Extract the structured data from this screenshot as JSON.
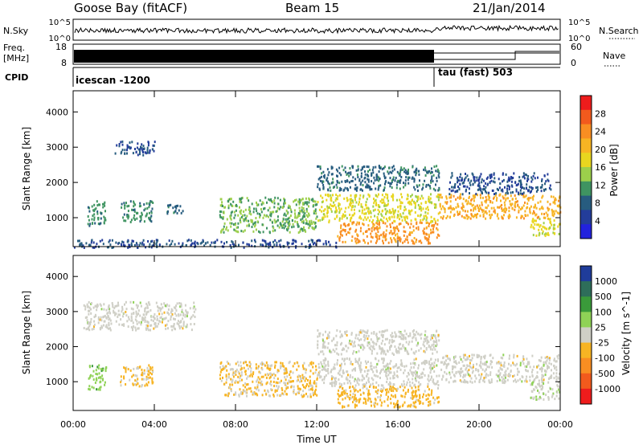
{
  "header": {
    "station": "Goose Bay (fitACF)",
    "beam": "Beam 15",
    "date": "21/Jan/2014"
  },
  "top_panels": {
    "nsky_label": "N.Sky",
    "nsky_ticks": [
      "10^5",
      "10^0"
    ],
    "nsearch_label": "N.Search",
    "nsearch_ticks": [
      "10^5",
      "10^0"
    ],
    "freq_label": "Freq.",
    "freq_unit": "[MHz]",
    "freq_ticks": [
      "18",
      "8"
    ],
    "nave_label": "Nave",
    "nave_ticks": [
      "60",
      "0"
    ],
    "cpid_label": "CPID",
    "cpid_segments": [
      {
        "label": "icescan -1200",
        "start_hour": 0
      },
      {
        "label": "tau (fast) 503",
        "start_hour": 18
      }
    ]
  },
  "colorbars": {
    "power": {
      "label": "Power [dB]",
      "ticks": [
        "28",
        "24",
        "20",
        "16",
        "12",
        "8",
        "4"
      ],
      "colors": [
        "#ee1c1c",
        "#f25a1d",
        "#f98e22",
        "#f7b423",
        "#e8d61f",
        "#9ccf4b",
        "#3f9461",
        "#275c7f",
        "#233d9a",
        "#2222dd"
      ]
    },
    "velocity": {
      "label": "Velocity [m s^-1]",
      "ticks": [
        "1000",
        "500",
        "100",
        "25",
        "-25",
        "-100",
        "-500",
        "-1000"
      ],
      "colors": [
        "#1f3c9a",
        "#2e6e5a",
        "#3a9a3a",
        "#8fd256",
        "#cfcfc6",
        "#f7b423",
        "#f98e22",
        "#f25a1d",
        "#ee1c1c"
      ]
    }
  },
  "axes": {
    "ylabel": "Slant Range [km]",
    "yticks": [
      "4000",
      "3000",
      "2000",
      "1000"
    ],
    "xticks": [
      "00:00",
      "04:00",
      "08:00",
      "12:00",
      "16:00",
      "20:00",
      "00:00"
    ],
    "xlabel": "Time UT"
  },
  "chart_data": [
    {
      "type": "heatmap",
      "title": "",
      "xlabel": "Time UT",
      "ylabel": "Slant Range [km]",
      "colorbar_label": "Power [dB]",
      "xlim_hours": [
        0,
        24
      ],
      "ylim_km": [
        180,
        4600
      ],
      "color_range": [
        0,
        30
      ],
      "patches": [
        {
          "t0": 0.7,
          "t1": 1.6,
          "r0": 800,
          "r1": 1500,
          "value": 10
        },
        {
          "t0": 2.3,
          "t1": 3.9,
          "r0": 900,
          "r1": 1500,
          "value": 10
        },
        {
          "t0": 4.6,
          "t1": 5.4,
          "r0": 1150,
          "r1": 1400,
          "value": 8
        },
        {
          "t0": 2.0,
          "t1": 4.0,
          "r0": 2800,
          "r1": 3200,
          "value": 6
        },
        {
          "t0": 7.2,
          "t1": 12.0,
          "r0": 600,
          "r1": 1600,
          "value": 12
        },
        {
          "t0": 12.0,
          "t1": 18.0,
          "r0": 900,
          "r1": 1700,
          "value": 16
        },
        {
          "t0": 13.0,
          "t1": 18.0,
          "r0": 300,
          "r1": 900,
          "value": 22
        },
        {
          "t0": 12.0,
          "t1": 18.0,
          "r0": 1800,
          "r1": 2500,
          "value": 8
        },
        {
          "t0": 18.0,
          "t1": 24.0,
          "r0": 1000,
          "r1": 1700,
          "value": 20
        },
        {
          "t0": 18.5,
          "t1": 23.5,
          "r0": 1700,
          "r1": 2300,
          "value": 6
        },
        {
          "t0": 22.5,
          "t1": 24.0,
          "r0": 500,
          "r1": 1000,
          "value": 16
        },
        {
          "t0": 0.0,
          "t1": 13.0,
          "r0": 180,
          "r1": 400,
          "value": 6
        }
      ]
    },
    {
      "type": "heatmap",
      "title": "",
      "xlabel": "Time UT",
      "ylabel": "Slant Range [km]",
      "colorbar_label": "Velocity [m s^-1]",
      "xlim_hours": [
        0,
        24
      ],
      "ylim_km": [
        180,
        4600
      ],
      "color_range": [
        -1000,
        1000
      ],
      "patches": [
        {
          "t0": 0.7,
          "t1": 1.6,
          "r0": 800,
          "r1": 1500,
          "value": 250
        },
        {
          "t0": 2.3,
          "t1": 3.9,
          "r0": 900,
          "r1": 1500,
          "value": -150
        },
        {
          "t0": 0.5,
          "t1": 6.0,
          "r0": 2500,
          "r1": 3300,
          "value": 0
        },
        {
          "t0": 7.2,
          "t1": 12.0,
          "r0": 600,
          "r1": 1600,
          "value": -150
        },
        {
          "t0": 12.0,
          "t1": 18.0,
          "r0": 900,
          "r1": 1700,
          "value": 0
        },
        {
          "t0": 13.0,
          "t1": 18.0,
          "r0": 300,
          "r1": 900,
          "value": -200
        },
        {
          "t0": 12.0,
          "t1": 18.0,
          "r0": 1800,
          "r1": 2500,
          "value": 0
        },
        {
          "t0": 18.0,
          "t1": 24.0,
          "r0": 1000,
          "r1": 1800,
          "value": 0
        },
        {
          "t0": 22.5,
          "t1": 24.0,
          "r0": 500,
          "r1": 1000,
          "value": 60
        }
      ]
    }
  ]
}
